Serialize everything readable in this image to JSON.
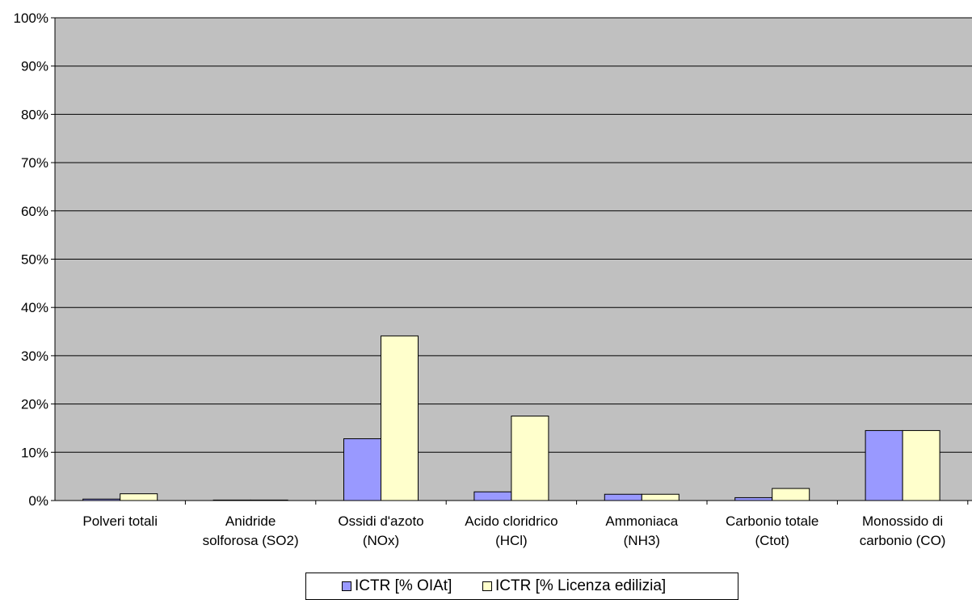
{
  "chart_data": {
    "type": "bar",
    "categories": [
      [
        "Polveri totali"
      ],
      [
        "Anidride",
        "solforosa (SO2)"
      ],
      [
        "Ossidi d'azoto",
        "(NOx)"
      ],
      [
        "Acido cloridrico",
        "(HCl)"
      ],
      [
        "Ammoniaca",
        "(NH3)"
      ],
      [
        "Carbonio totale",
        "(Ctot)"
      ],
      [
        "Monossido di",
        "carbonio (CO)"
      ]
    ],
    "series": [
      {
        "name": "ICTR [% OIAt]",
        "color": "#9999ff",
        "values": [
          0.3,
          0.1,
          12.8,
          1.8,
          1.3,
          0.6,
          14.5
        ]
      },
      {
        "name": "ICTR [% Licenza edilizia]",
        "color": "#ffffcc",
        "values": [
          1.4,
          0.1,
          34.1,
          17.5,
          1.3,
          2.5,
          14.5
        ]
      }
    ],
    "yticks": [
      "0%",
      "10%",
      "20%",
      "30%",
      "40%",
      "50%",
      "60%",
      "70%",
      "80%",
      "90%",
      "100%"
    ],
    "ylim": [
      0,
      100
    ],
    "plot_background": "#c0c0c0",
    "grid": true,
    "legend_position": "bottom"
  }
}
